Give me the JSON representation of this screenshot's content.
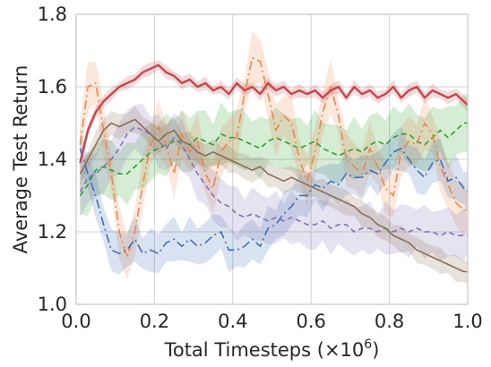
{
  "chart_data": {
    "type": "line",
    "xlabel": "Total Timesteps (×10",
    "xlabel_sup": "6",
    "xlabel_close": ")",
    "ylabel": "Average Test Return",
    "xlim": [
      0.0,
      1.0
    ],
    "ylim": [
      1.0,
      1.8
    ],
    "xticks": [
      0.0,
      0.2,
      0.4,
      0.6,
      0.8,
      1.0
    ],
    "yticks": [
      1.0,
      1.2,
      1.4,
      1.6,
      1.8
    ],
    "xtick_labels": [
      "0.0",
      "0.2",
      "0.4",
      "0.6",
      "0.8",
      "1.0"
    ],
    "ytick_labels": [
      "1.0",
      "1.2",
      "1.4",
      "1.6",
      "1.8"
    ],
    "grid": true,
    "series": [
      {
        "color": "#2ca02c",
        "dash": "6,4",
        "width": 1.6,
        "x": [
          0.01,
          0.03,
          0.05,
          0.07,
          0.09,
          0.11,
          0.13,
          0.15,
          0.17,
          0.19,
          0.21,
          0.23,
          0.25,
          0.27,
          0.29,
          0.31,
          0.33,
          0.35,
          0.37,
          0.39,
          0.41,
          0.43,
          0.45,
          0.47,
          0.49,
          0.51,
          0.53,
          0.55,
          0.57,
          0.59,
          0.61,
          0.63,
          0.65,
          0.67,
          0.69,
          0.71,
          0.73,
          0.75,
          0.77,
          0.79,
          0.81,
          0.83,
          0.85,
          0.87,
          0.89,
          0.91,
          0.93,
          0.95,
          0.97,
          0.99,
          1.0
        ],
        "y": [
          1.3,
          1.33,
          1.37,
          1.38,
          1.37,
          1.36,
          1.36,
          1.38,
          1.4,
          1.42,
          1.43,
          1.44,
          1.45,
          1.45,
          1.44,
          1.46,
          1.45,
          1.44,
          1.47,
          1.46,
          1.46,
          1.45,
          1.44,
          1.43,
          1.45,
          1.46,
          1.45,
          1.44,
          1.43,
          1.44,
          1.45,
          1.43,
          1.42,
          1.41,
          1.42,
          1.43,
          1.42,
          1.44,
          1.45,
          1.44,
          1.46,
          1.47,
          1.47,
          1.45,
          1.44,
          1.46,
          1.48,
          1.46,
          1.48,
          1.5,
          1.5
        ],
        "band": 0.07
      },
      {
        "color": "#e9894a",
        "dash": "10,4,2,4",
        "width": 1.6,
        "x": [
          0.01,
          0.03,
          0.05,
          0.07,
          0.09,
          0.11,
          0.13,
          0.15,
          0.17,
          0.19,
          0.21,
          0.23,
          0.25,
          0.27,
          0.29,
          0.31,
          0.33,
          0.35,
          0.37,
          0.39,
          0.41,
          0.43,
          0.45,
          0.47,
          0.49,
          0.51,
          0.53,
          0.55,
          0.57,
          0.59,
          0.61,
          0.63,
          0.65,
          0.67,
          0.69,
          0.71,
          0.73,
          0.75,
          0.77,
          0.79,
          0.81,
          0.83,
          0.85,
          0.87,
          0.89,
          0.91,
          0.93,
          0.95,
          0.97,
          0.99,
          1.0
        ],
        "y": [
          1.44,
          1.6,
          1.61,
          1.48,
          1.36,
          1.2,
          1.13,
          1.2,
          1.33,
          1.44,
          1.49,
          1.44,
          1.36,
          1.47,
          1.42,
          1.45,
          1.36,
          1.32,
          1.42,
          1.45,
          1.46,
          1.58,
          1.68,
          1.67,
          1.58,
          1.48,
          1.52,
          1.5,
          1.4,
          1.34,
          1.42,
          1.53,
          1.6,
          1.52,
          1.4,
          1.38,
          1.36,
          1.43,
          1.38,
          1.32,
          1.3,
          1.42,
          1.45,
          1.44,
          1.5,
          1.47,
          1.38,
          1.33,
          1.28,
          1.26,
          1.26
        ],
        "band": 0.06
      },
      {
        "color": "#3f6fb5",
        "dash": "10,4,2,4",
        "width": 1.6,
        "x": [
          0.01,
          0.03,
          0.05,
          0.07,
          0.09,
          0.11,
          0.13,
          0.15,
          0.17,
          0.19,
          0.21,
          0.23,
          0.25,
          0.27,
          0.29,
          0.31,
          0.33,
          0.35,
          0.37,
          0.39,
          0.41,
          0.43,
          0.45,
          0.47,
          0.49,
          0.51,
          0.53,
          0.55,
          0.57,
          0.59,
          0.61,
          0.63,
          0.65,
          0.67,
          0.69,
          0.71,
          0.73,
          0.75,
          0.77,
          0.79,
          0.81,
          0.83,
          0.85,
          0.87,
          0.89,
          0.91,
          0.93,
          0.95,
          0.97,
          0.99,
          1.0
        ],
        "y": [
          1.43,
          1.36,
          1.3,
          1.22,
          1.15,
          1.14,
          1.15,
          1.18,
          1.14,
          1.15,
          1.14,
          1.17,
          1.18,
          1.16,
          1.18,
          1.16,
          1.17,
          1.19,
          1.2,
          1.15,
          1.15,
          1.16,
          1.18,
          1.16,
          1.21,
          1.22,
          1.25,
          1.27,
          1.3,
          1.3,
          1.33,
          1.32,
          1.34,
          1.33,
          1.36,
          1.35,
          1.35,
          1.37,
          1.36,
          1.39,
          1.42,
          1.43,
          1.4,
          1.37,
          1.35,
          1.39,
          1.4,
          1.34,
          1.35,
          1.32,
          1.31
        ],
        "band": 0.05
      },
      {
        "color": "#c8454c",
        "dash": "",
        "width": 2.4,
        "x": [
          0.01,
          0.03,
          0.05,
          0.07,
          0.09,
          0.11,
          0.13,
          0.15,
          0.17,
          0.19,
          0.21,
          0.23,
          0.25,
          0.27,
          0.29,
          0.31,
          0.33,
          0.35,
          0.37,
          0.39,
          0.41,
          0.43,
          0.45,
          0.47,
          0.49,
          0.51,
          0.53,
          0.55,
          0.57,
          0.59,
          0.61,
          0.63,
          0.65,
          0.67,
          0.69,
          0.71,
          0.73,
          0.75,
          0.77,
          0.79,
          0.81,
          0.83,
          0.85,
          0.87,
          0.89,
          0.91,
          0.93,
          0.95,
          0.97,
          0.99,
          1.0
        ],
        "y": [
          1.39,
          1.48,
          1.53,
          1.56,
          1.58,
          1.6,
          1.61,
          1.62,
          1.64,
          1.65,
          1.66,
          1.64,
          1.63,
          1.61,
          1.62,
          1.6,
          1.61,
          1.59,
          1.6,
          1.58,
          1.61,
          1.59,
          1.6,
          1.58,
          1.61,
          1.59,
          1.6,
          1.58,
          1.59,
          1.58,
          1.59,
          1.57,
          1.59,
          1.6,
          1.57,
          1.6,
          1.58,
          1.59,
          1.57,
          1.58,
          1.6,
          1.57,
          1.59,
          1.6,
          1.57,
          1.59,
          1.58,
          1.57,
          1.58,
          1.56,
          1.55
        ],
        "band": 0.015
      },
      {
        "color": "#8172b2",
        "dash": "6,4",
        "width": 1.6,
        "x": [
          0.01,
          0.03,
          0.05,
          0.07,
          0.09,
          0.11,
          0.13,
          0.15,
          0.17,
          0.19,
          0.21,
          0.23,
          0.25,
          0.27,
          0.29,
          0.31,
          0.33,
          0.35,
          0.37,
          0.39,
          0.41,
          0.43,
          0.45,
          0.47,
          0.49,
          0.51,
          0.53,
          0.55,
          0.57,
          0.59,
          0.61,
          0.63,
          0.65,
          0.67,
          0.69,
          0.71,
          0.73,
          0.75,
          0.77,
          0.79,
          0.81,
          0.83,
          0.85,
          0.87,
          0.89,
          0.91,
          0.93,
          0.95,
          0.97,
          0.99,
          1.0
        ],
        "y": [
          1.31,
          1.35,
          1.36,
          1.38,
          1.4,
          1.43,
          1.47,
          1.49,
          1.48,
          1.47,
          1.45,
          1.43,
          1.46,
          1.44,
          1.4,
          1.36,
          1.33,
          1.3,
          1.28,
          1.27,
          1.25,
          1.24,
          1.25,
          1.24,
          1.23,
          1.24,
          1.23,
          1.24,
          1.23,
          1.22,
          1.22,
          1.23,
          1.21,
          1.22,
          1.22,
          1.2,
          1.21,
          1.21,
          1.2,
          1.21,
          1.2,
          1.21,
          1.2,
          1.21,
          1.2,
          1.2,
          1.19,
          1.2,
          1.19,
          1.19,
          1.19
        ],
        "band": 0.06
      },
      {
        "color": "#8c6d54",
        "dash": "",
        "width": 1.6,
        "x": [
          0.01,
          0.03,
          0.05,
          0.07,
          0.09,
          0.11,
          0.13,
          0.15,
          0.17,
          0.19,
          0.21,
          0.23,
          0.25,
          0.27,
          0.29,
          0.31,
          0.33,
          0.35,
          0.37,
          0.39,
          0.41,
          0.43,
          0.45,
          0.47,
          0.49,
          0.51,
          0.53,
          0.55,
          0.57,
          0.59,
          0.61,
          0.63,
          0.65,
          0.67,
          0.69,
          0.71,
          0.73,
          0.75,
          0.77,
          0.79,
          0.81,
          0.83,
          0.85,
          0.87,
          0.89,
          0.91,
          0.93,
          0.95,
          0.97,
          0.99,
          1.0
        ],
        "y": [
          1.36,
          1.4,
          1.44,
          1.48,
          1.5,
          1.49,
          1.5,
          1.51,
          1.49,
          1.47,
          1.45,
          1.47,
          1.48,
          1.45,
          1.44,
          1.42,
          1.41,
          1.42,
          1.41,
          1.4,
          1.39,
          1.38,
          1.37,
          1.38,
          1.36,
          1.35,
          1.34,
          1.35,
          1.34,
          1.33,
          1.32,
          1.31,
          1.3,
          1.29,
          1.28,
          1.27,
          1.25,
          1.24,
          1.22,
          1.21,
          1.19,
          1.18,
          1.17,
          1.15,
          1.14,
          1.13,
          1.12,
          1.11,
          1.1,
          1.09,
          1.09
        ],
        "band": 0.03
      }
    ]
  }
}
